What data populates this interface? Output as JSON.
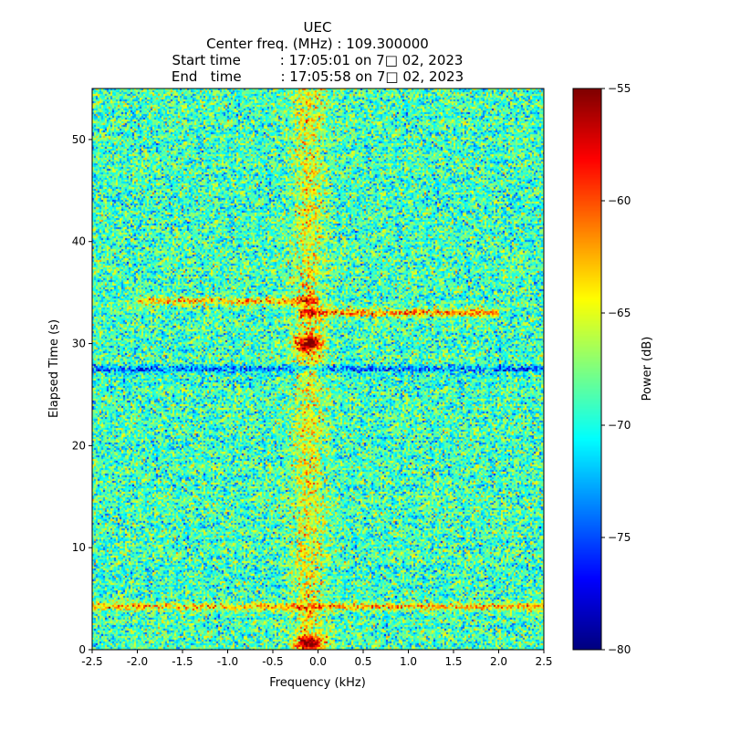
{
  "chart_data": {
    "type": "heatmap",
    "title": "UEC",
    "subtitle_lines": [
      "Center freq. (MHz) : 109.300000",
      "Start time         : 17:05:01 on 7□ 02, 2023",
      "End   time         : 17:05:58 on 7□ 02, 2023"
    ],
    "xlabel": "Frequency (kHz)",
    "ylabel": "Elapsed Time (s)",
    "xlim": [
      -2.5,
      2.5
    ],
    "ylim": [
      0,
      55
    ],
    "xticks": [
      -2.5,
      -2.0,
      -1.5,
      -1.0,
      -0.5,
      0.0,
      0.5,
      1.0,
      1.5,
      2.0,
      2.5
    ],
    "xtick_labels": [
      "-2.5",
      "-2.0",
      "-1.5",
      "-1.0",
      "-0.5",
      "0.0",
      "0.5",
      "1.0",
      "1.5",
      "2.0",
      "2.5"
    ],
    "yticks": [
      0,
      10,
      20,
      30,
      40,
      50
    ],
    "ytick_labels": [
      "0",
      "10",
      "20",
      "30",
      "40",
      "50"
    ],
    "colormap": "jet",
    "colorbar": {
      "label": "Power (dB)",
      "range": [
        -80,
        -55
      ],
      "ticks": [
        -80,
        -75,
        -70,
        -65,
        -60,
        -55
      ],
      "tick_labels": [
        "−80",
        "−75",
        "−70",
        "−65",
        "−60",
        "−55"
      ]
    },
    "background_power_db": -69,
    "noise_spread_db": 5,
    "features": [
      {
        "kind": "horizontal_band",
        "time_s": 4.2,
        "freq_range_khz": [
          -2.5,
          2.5
        ],
        "power_db": -62
      },
      {
        "kind": "horizontal_band",
        "time_s": 33.0,
        "freq_range_khz": [
          -0.2,
          2.0
        ],
        "power_db": -60
      },
      {
        "kind": "horizontal_band",
        "time_s": 34.2,
        "freq_range_khz": [
          -2.0,
          0.0
        ],
        "power_db": -62
      },
      {
        "kind": "horizontal_band",
        "time_s": 27.5,
        "freq_range_khz": [
          -2.5,
          2.5
        ],
        "power_db": -74
      },
      {
        "kind": "hotspot",
        "time_s": 30.0,
        "freq_khz": -0.1,
        "power_db": -57
      },
      {
        "kind": "hotspot",
        "time_s": 0.6,
        "freq_khz": -0.1,
        "power_db": -58
      },
      {
        "kind": "vertical_streak",
        "freq_khz": -0.1,
        "time_range_s": [
          0,
          55
        ],
        "power_db": -64
      }
    ]
  }
}
